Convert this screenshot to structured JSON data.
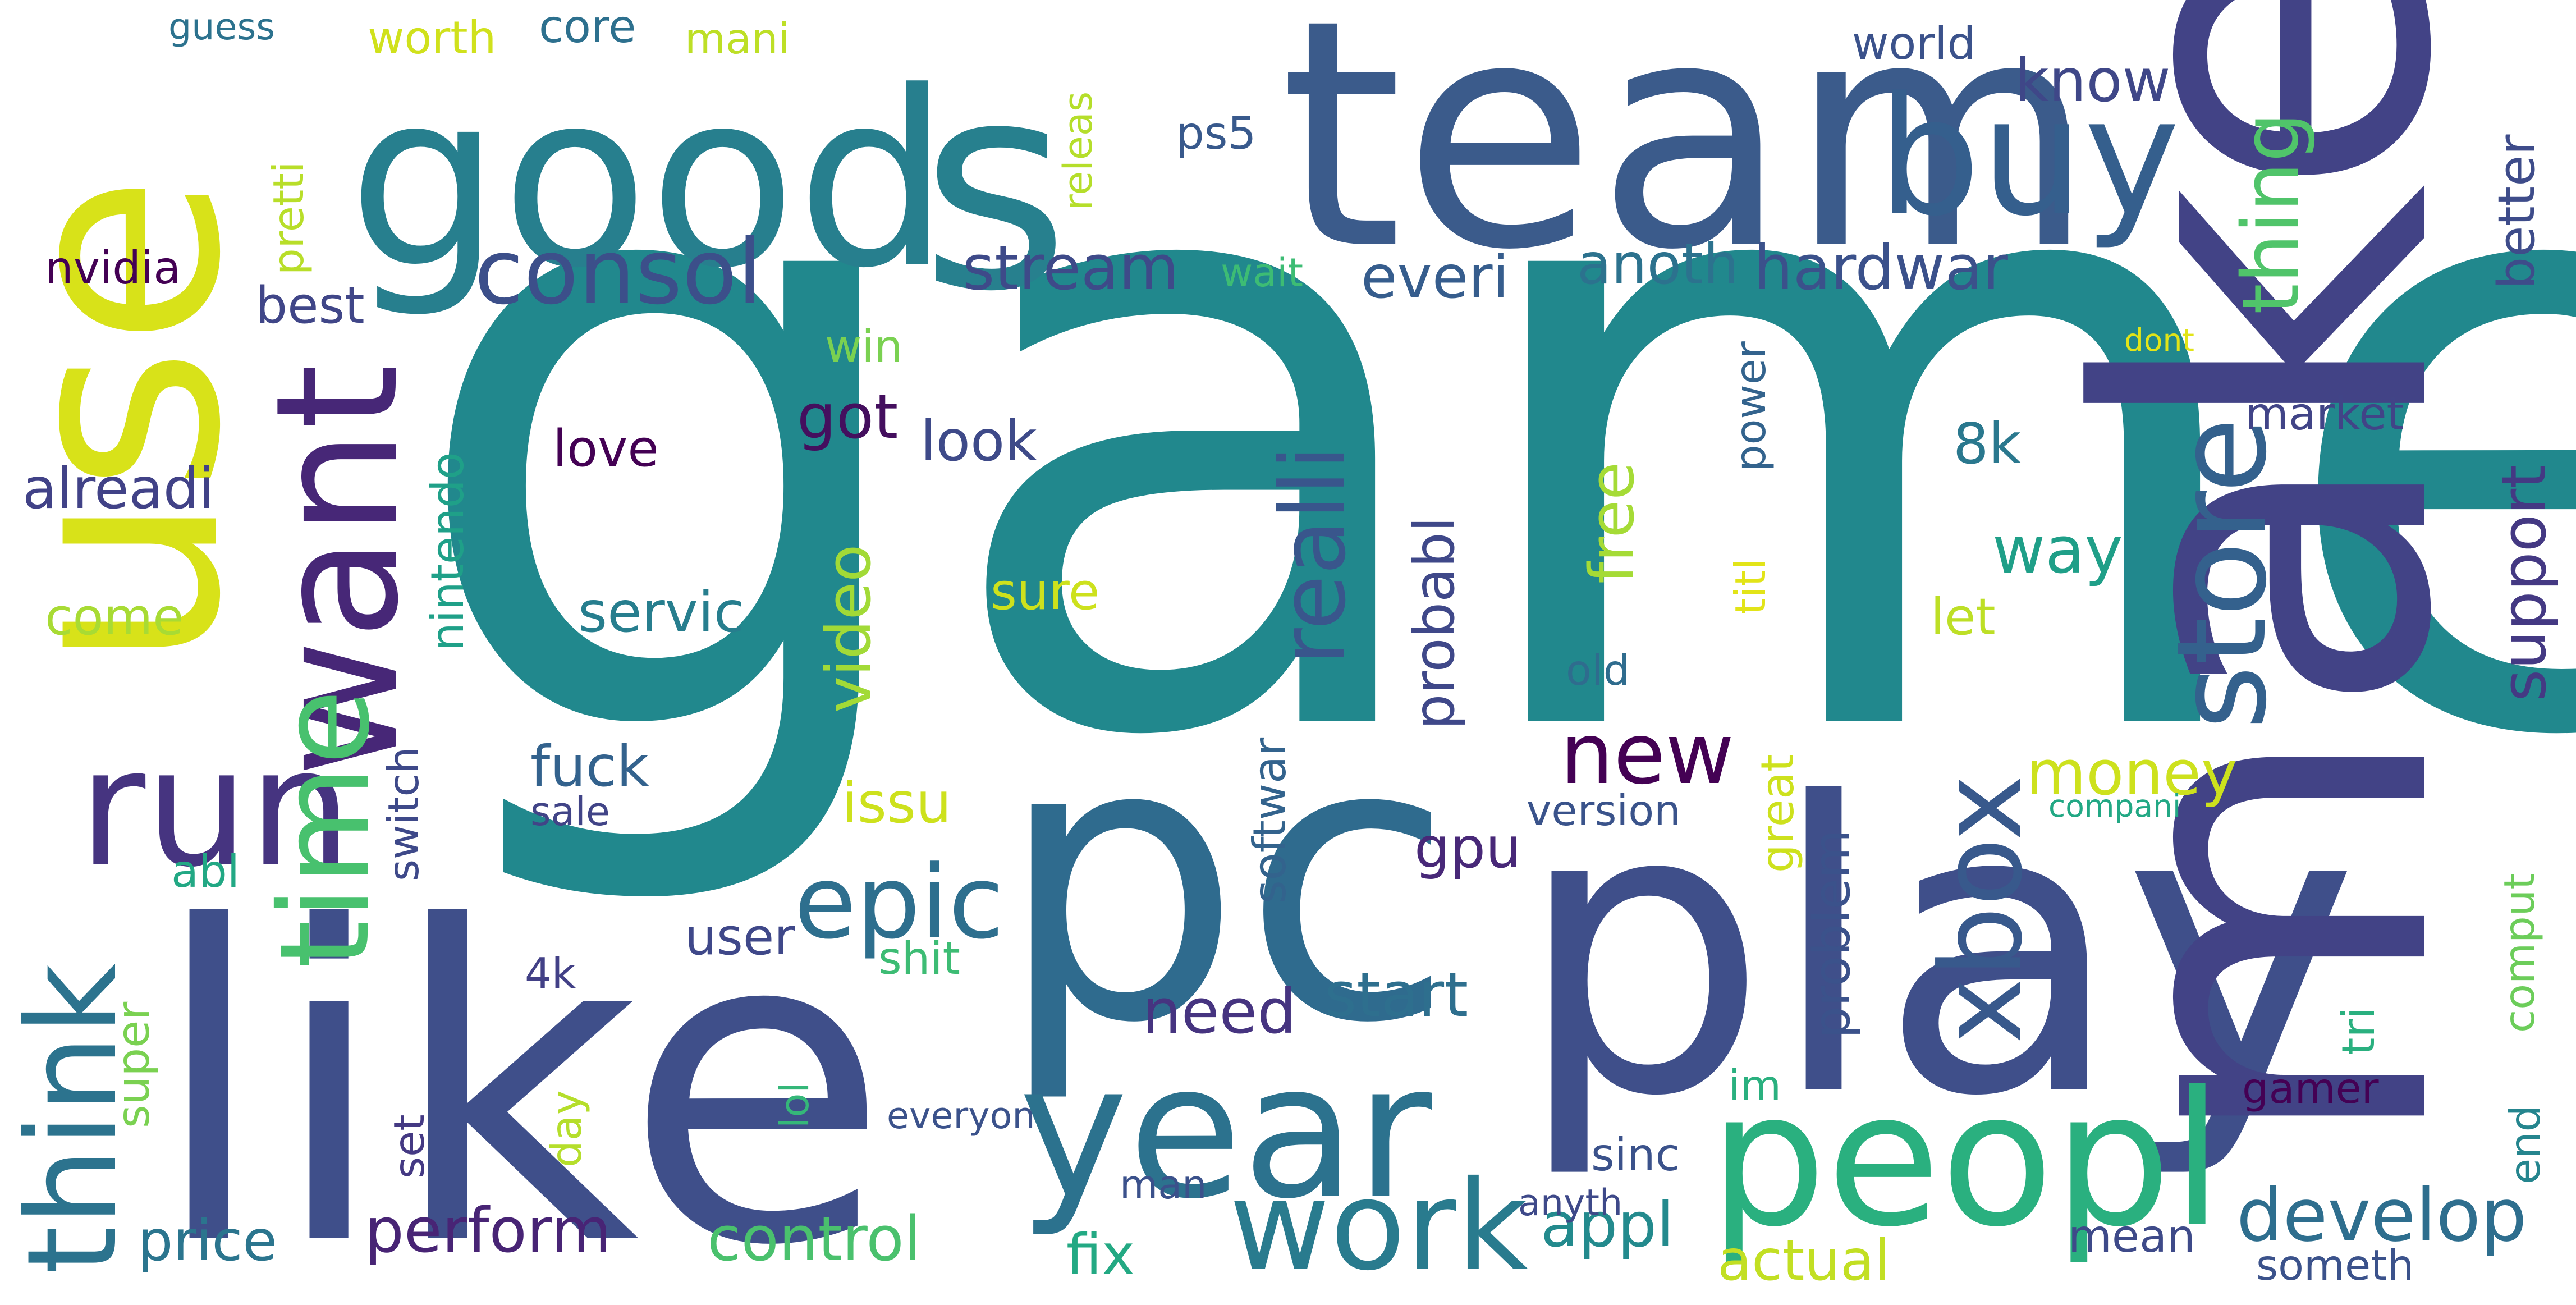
{
  "words": [
    {
      "text": "game",
      "color": "#21888d"
    },
    {
      "text": "pc",
      "color": "#2f6b8e"
    },
    {
      "text": "like",
      "color": "#3f4f8a"
    },
    {
      "text": "play",
      "color": "#3f4f8a"
    },
    {
      "text": "make",
      "color": "#424386"
    },
    {
      "text": "use",
      "color": "#d8e219"
    },
    {
      "text": "team",
      "color": "#3b5b8b"
    },
    {
      "text": "good",
      "color": "#277f8e"
    },
    {
      "text": "year",
      "color": "#2c728e"
    },
    {
      "text": "buy",
      "color": "#355f8d"
    },
    {
      "text": "want",
      "color": "#472777"
    },
    {
      "text": "peopl",
      "color": "#2ab07f"
    },
    {
      "text": "run",
      "color": "#463480"
    },
    {
      "text": "s",
      "color": "#27808e"
    },
    {
      "text": "work",
      "color": "#297b8e"
    },
    {
      "text": "time",
      "color": "#48c16e"
    },
    {
      "text": "think",
      "color": "#2c738e"
    },
    {
      "text": "consol",
      "color": "#3c4f8a"
    },
    {
      "text": "store",
      "color": "#34618d"
    },
    {
      "text": "epic",
      "color": "#2e6f8e"
    },
    {
      "text": "realli",
      "color": "#39568c"
    },
    {
      "text": "xbox",
      "color": "#38598c"
    },
    {
      "text": "new",
      "color": "#440154"
    },
    {
      "text": "thing",
      "color": "#50c46a"
    },
    {
      "text": "develop",
      "color": "#2e6e8e"
    },
    {
      "text": "stream",
      "color": "#3e4a89"
    },
    {
      "text": "hardwar",
      "color": "#3b518b"
    },
    {
      "text": "know",
      "color": "#3f4788"
    },
    {
      "text": "everi",
      "color": "#365d8d"
    },
    {
      "text": "need",
      "color": "#463480"
    },
    {
      "text": "perform",
      "color": "#482475"
    },
    {
      "text": "money",
      "color": "#cde11d"
    },
    {
      "text": "better",
      "color": "#3e4c8a"
    },
    {
      "text": "support",
      "color": "#443983"
    },
    {
      "text": "appl",
      "color": "#238a8d"
    },
    {
      "text": "control",
      "color": "#4ac16d"
    },
    {
      "text": "actual",
      "color": "#c2df23"
    },
    {
      "text": "start",
      "color": "#2e6f8e"
    },
    {
      "text": "way",
      "color": "#1f9f88"
    },
    {
      "text": "probabl",
      "color": "#3f4889"
    },
    {
      "text": "video",
      "color": "#a2da37"
    },
    {
      "text": "price",
      "color": "#2b758e"
    },
    {
      "text": "anoth",
      "color": "#2c728e"
    },
    {
      "text": "fuck",
      "color": "#33628d"
    },
    {
      "text": "look",
      "color": "#3e4a89"
    },
    {
      "text": "free",
      "color": "#a5db36"
    },
    {
      "text": "servic",
      "color": "#277e8e"
    },
    {
      "text": "got",
      "color": "#440f5e"
    },
    {
      "text": "alreadi",
      "color": "#414287"
    },
    {
      "text": "issu",
      "color": "#cde11d"
    },
    {
      "text": "fix",
      "color": "#23a983"
    },
    {
      "text": "8k",
      "color": "#2a788e"
    },
    {
      "text": "problem",
      "color": "#3b528b"
    },
    {
      "text": "mean",
      "color": "#3e4a89"
    },
    {
      "text": "best",
      "color": "#404688"
    },
    {
      "text": "market",
      "color": "#414487"
    },
    {
      "text": "come",
      "color": "#a8db34"
    },
    {
      "text": "gpu",
      "color": "#482878"
    },
    {
      "text": "nintendo",
      "color": "#1fa088"
    },
    {
      "text": "pretti",
      "color": "#b8de29"
    },
    {
      "text": "user",
      "color": "#3f4889"
    },
    {
      "text": "let",
      "color": "#bddf26"
    },
    {
      "text": "softwar",
      "color": "#33638d"
    },
    {
      "text": "nvidia",
      "color": "#440154"
    },
    {
      "text": "power",
      "color": "#33638d"
    },
    {
      "text": "switch",
      "color": "#3e4989"
    },
    {
      "text": "tri",
      "color": "#2ab07f"
    },
    {
      "text": "love",
      "color": "#440154"
    },
    {
      "text": "world",
      "color": "#3b528b"
    },
    {
      "text": "comput",
      "color": "#6ccd5a"
    },
    {
      "text": "version",
      "color": "#3a538b"
    },
    {
      "text": "end",
      "color": "#25858e"
    },
    {
      "text": "sure",
      "color": "#cde11d"
    },
    {
      "text": "shit",
      "color": "#3dbc74"
    },
    {
      "text": "great",
      "color": "#cde11d"
    },
    {
      "text": "titl",
      "color": "#e2e418"
    },
    {
      "text": "old",
      "color": "#2f6c8e"
    },
    {
      "text": "win",
      "color": "#7ad151"
    },
    {
      "text": "day",
      "color": "#b5de2b"
    },
    {
      "text": "super",
      "color": "#7ad151"
    },
    {
      "text": "releas",
      "color": "#b5de2b"
    },
    {
      "text": "sinc",
      "color": "#3b528b"
    },
    {
      "text": "ps5",
      "color": "#38598c"
    },
    {
      "text": "gamer",
      "color": "#440154"
    },
    {
      "text": "core",
      "color": "#2d708e"
    },
    {
      "text": "abl",
      "color": "#22a884"
    },
    {
      "text": "man",
      "color": "#3b518b"
    },
    {
      "text": "worth",
      "color": "#d0e11c"
    },
    {
      "text": "mani",
      "color": "#bddf26"
    },
    {
      "text": "4k",
      "color": "#424086"
    },
    {
      "text": "set",
      "color": "#443983"
    },
    {
      "text": "lol",
      "color": "#35b779"
    },
    {
      "text": "im",
      "color": "#2ab07f"
    },
    {
      "text": "wait",
      "color": "#3dbc74"
    },
    {
      "text": "anyth",
      "color": "#3e4989"
    },
    {
      "text": "sale",
      "color": "#414487"
    },
    {
      "text": "someth",
      "color": "#3b528b"
    },
    {
      "text": "everyon",
      "color": "#3b528b"
    },
    {
      "text": "compani",
      "color": "#22a884"
    },
    {
      "text": "guess",
      "color": "#2c728e"
    },
    {
      "text": "dont",
      "color": "#e2e418"
    }
  ]
}
